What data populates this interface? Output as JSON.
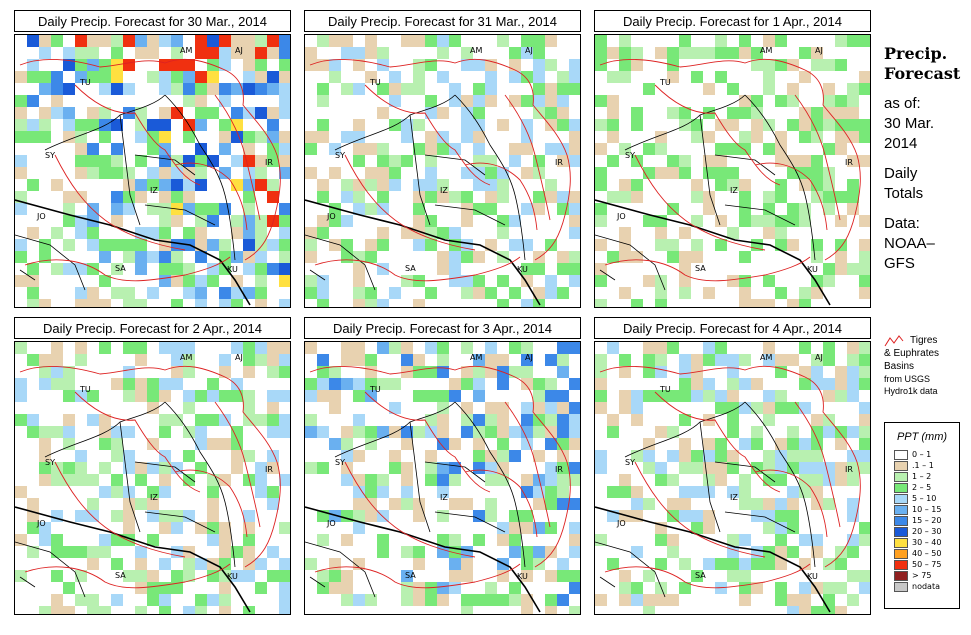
{
  "panels": [
    {
      "title": "Daily Precip. Forecast for  30 Mar., 2014",
      "intensity": 3
    },
    {
      "title": "Daily Precip. Forecast for  31 Mar., 2014",
      "intensity": 1
    },
    {
      "title": "Daily Precip. Forecast for  1 Apr., 2014",
      "intensity": 0
    },
    {
      "title": "Daily Precip. Forecast for  2 Apr., 2014",
      "intensity": 1
    },
    {
      "title": "Daily Precip. Forecast for  3 Apr., 2014",
      "intensity": 2
    },
    {
      "title": "Daily Precip. Forecast for  4 Apr., 2014",
      "intensity": 1
    }
  ],
  "country_labels": [
    "AM",
    "AJ",
    "TU",
    "SY",
    "IR",
    "IZ",
    "JO",
    "SA",
    "KU"
  ],
  "sidebar": {
    "heading1": "Precip.",
    "heading2": "Forecast",
    "asof": "as of:",
    "date1": "30 Mar.",
    "date2": "2014",
    "totals1": "Daily",
    "totals2": "Totals",
    "data1": "Data:",
    "data2": "NOAA–",
    "data3": "GFS"
  },
  "basin_note": {
    "line1": "Tigres",
    "line2": "& Euphrates",
    "line3": "Basins",
    "line4": "from USGS",
    "line5": "Hydro1k data",
    "color": "#dd2222"
  },
  "legend": {
    "title": "PPT (mm)",
    "items": [
      {
        "label": "0 – 1",
        "color": "#ffffff"
      },
      {
        "label": ".1 – 1",
        "color": "#e8d2b0"
      },
      {
        "label": "1 – 2",
        "color": "#b8f0b0"
      },
      {
        "label": "2 – 5",
        "color": "#78e878"
      },
      {
        "label": "5 – 10",
        "color": "#a8d8f8"
      },
      {
        "label": "10 – 15",
        "color": "#6ab0f0"
      },
      {
        "label": "15 – 20",
        "color": "#3c88e8"
      },
      {
        "label": "20 – 30",
        "color": "#1a5ad8"
      },
      {
        "label": "30 – 40",
        "color": "#ffe040"
      },
      {
        "label": "40 – 50",
        "color": "#ffa020"
      },
      {
        "label": "50 – 75",
        "color": "#f03010"
      },
      {
        "label": "> 75",
        "color": "#902020"
      },
      {
        "label": "nodata",
        "color": "#c8c8c8"
      }
    ]
  }
}
